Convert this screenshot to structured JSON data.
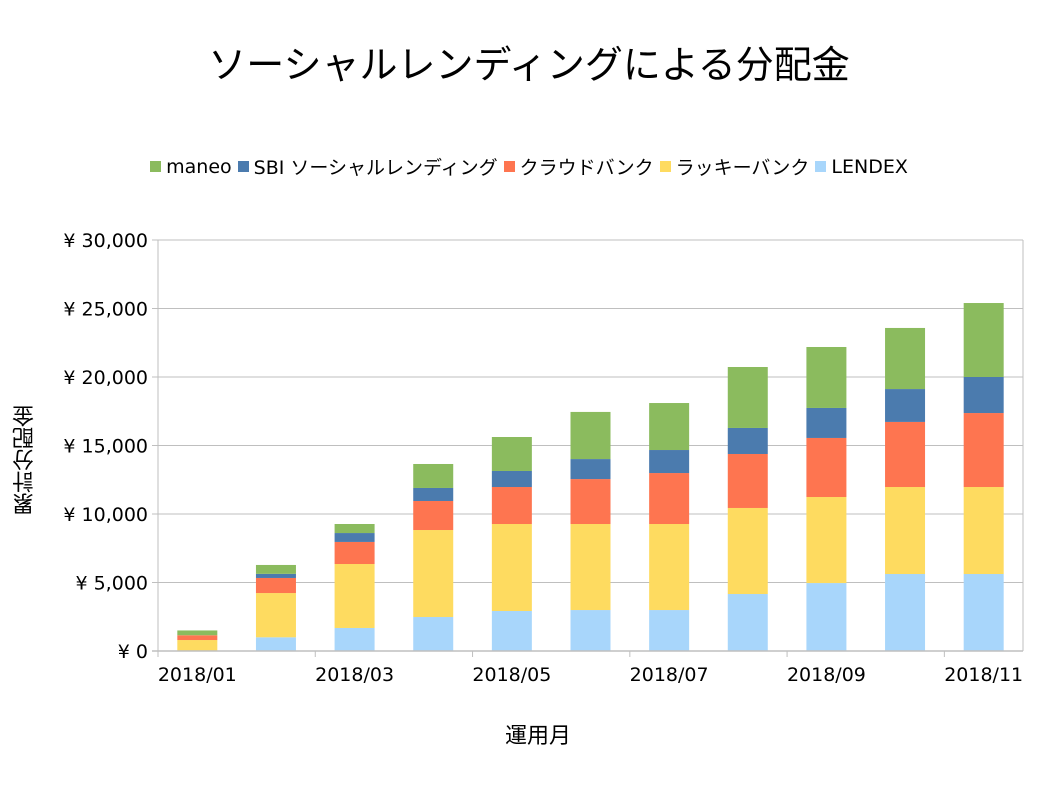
{
  "chart_data": {
    "type": "bar",
    "stacked": true,
    "title": "ソーシャルレンディングによる分配金",
    "xlabel": "運用月",
    "ylabel": "累計分配金",
    "ylim": [
      0,
      30000
    ],
    "yticks": [
      0,
      5000,
      10000,
      15000,
      20000,
      25000,
      30000
    ],
    "ytick_labels": [
      "¥ 0",
      "¥ 5,000",
      "¥ 10,000",
      "¥ 15,000",
      "¥ 20,000",
      "¥ 25,000",
      "¥ 30,000"
    ],
    "grid": true,
    "legend_position": "top",
    "categories": [
      "2018/01",
      "2018/02",
      "2018/03",
      "2018/04",
      "2018/05",
      "2018/06",
      "2018/07",
      "2018/08",
      "2018/09",
      "2018/10",
      "2018/11"
    ],
    "x_tick_labels_shown": [
      "2018/01",
      "2018/03",
      "2018/05",
      "2018/07",
      "2018/09",
      "2018/11"
    ],
    "stack_order": [
      "LENDEX",
      "ラッキーバンク",
      "クラウドバンク",
      "SBI ソーシャルレンディング",
      "maneo"
    ],
    "series": [
      {
        "name": "maneo",
        "color": "#8BBB5E",
        "values": [
          350,
          650,
          660,
          1750,
          2480,
          3440,
          3430,
          4450,
          4450,
          4460,
          5400
        ]
      },
      {
        "name": "SBI ソーシャルレンディング",
        "color": "#4B7BAE",
        "values": [
          0,
          300,
          650,
          950,
          1170,
          1460,
          1680,
          1900,
          2190,
          2400,
          2630
        ]
      },
      {
        "name": "クラウドバンク",
        "color": "#FE7550",
        "values": [
          350,
          1100,
          1610,
          2120,
          2700,
          3280,
          3720,
          3940,
          4310,
          4750,
          5400
        ]
      },
      {
        "name": "ラッキーバンク",
        "color": "#FEDB60",
        "values": [
          800,
          3230,
          4670,
          6350,
          6350,
          6280,
          6280,
          6280,
          6280,
          6350,
          6350
        ]
      },
      {
        "name": "LENDEX",
        "color": "#A8D6FB",
        "values": [
          0,
          1000,
          1680,
          2480,
          2920,
          2990,
          2990,
          4160,
          4960,
          5620,
          5620
        ]
      }
    ]
  }
}
